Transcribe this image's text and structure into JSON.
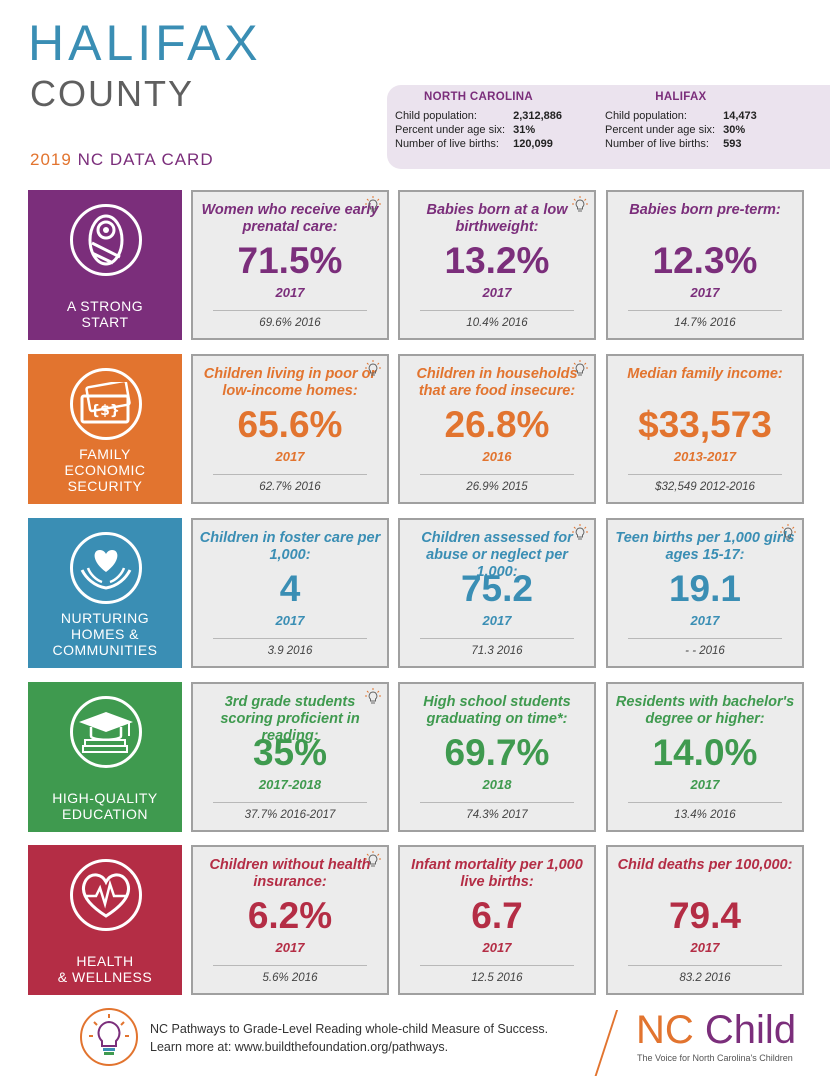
{
  "header": {
    "title_line1": "HALIFAX",
    "title_line2": "COUNTY",
    "year": "2019",
    "card_label": "NC DATA CARD"
  },
  "stats": {
    "nc": {
      "heading": "NORTH CAROLINA",
      "rows": [
        {
          "label": "Child population:",
          "value": "2,312,886"
        },
        {
          "label": "Percent under age six:",
          "value": "31%"
        },
        {
          "label": "Number of live births:",
          "value": "120,099"
        }
      ]
    },
    "halifax": {
      "heading": "HALIFAX",
      "rows": [
        {
          "label": "Child population:",
          "value": "14,473"
        },
        {
          "label": "Percent under age six:",
          "value": "30%"
        },
        {
          "label": "Number of live births:",
          "value": "593"
        }
      ]
    }
  },
  "colors": {
    "start": "#7b2e7b",
    "economic": "#e2742f",
    "nurturing": "#3a8eb4",
    "education": "#3f9a4f",
    "health": "#b42d45"
  },
  "sections": [
    {
      "label_lines": [
        "A STRONG",
        "START"
      ],
      "icon": "swaddled-baby-icon",
      "cards": [
        {
          "question": "Women who receive early prenatal care:",
          "value": "71.5%",
          "year": "2017",
          "previous": "69.6%  2016",
          "bulb": true
        },
        {
          "question": "Babies born at a low birthweight:",
          "value": "13.2%",
          "year": "2017",
          "previous": "10.4%  2016",
          "bulb": true
        },
        {
          "question": "Babies born pre-term:",
          "value": "12.3%",
          "year": "2017",
          "previous": "14.7%  2016",
          "bulb": false
        }
      ]
    },
    {
      "label_lines": [
        "FAMILY",
        "ECONOMIC",
        "SECURITY"
      ],
      "icon": "money-bills-icon",
      "cards": [
        {
          "question": "Children living in poor or low-income homes:",
          "value": "65.6%",
          "year": "2017",
          "previous": "62.7%  2016",
          "bulb": true
        },
        {
          "question": "Children in households that are food insecure:",
          "value": "26.8%",
          "year": "2016",
          "previous": "26.9%  2015",
          "bulb": true
        },
        {
          "question": "Median family income:",
          "value": "$33,573",
          "year": "2013-2017",
          "previous": "$32,549  2012-2016",
          "bulb": false
        }
      ]
    },
    {
      "label_lines": [
        "NURTURING",
        "HOMES &",
        "COMMUNITIES"
      ],
      "icon": "heart-in-hands-icon",
      "cards": [
        {
          "question": "Children in foster care per 1,000:",
          "value": "4",
          "year": "2017",
          "previous": "3.9  2016",
          "bulb": false
        },
        {
          "question": "Children assessed for abuse or neglect per 1,000:",
          "value": "75.2",
          "year": "2017",
          "previous": "71.3  2016",
          "bulb": true
        },
        {
          "question": "Teen births per 1,000 girls ages 15-17:",
          "value": "19.1",
          "year": "2017",
          "previous": "- -  2016",
          "bulb": true
        }
      ]
    },
    {
      "label_lines": [
        "HIGH-QUALITY",
        "EDUCATION"
      ],
      "icon": "graduation-cap-icon",
      "cards": [
        {
          "question": "3rd grade students scoring proficient in reading:",
          "value": "35%",
          "year": "2017-2018",
          "previous": "37.7%  2016-2017",
          "bulb": true
        },
        {
          "question": "High school students graduating on time*:",
          "value": "69.7%",
          "year": "2018",
          "previous": "74.3%  2017",
          "bulb": false
        },
        {
          "question": "Residents with bachelor's degree or higher:",
          "value": "14.0%",
          "year": "2017",
          "previous": "13.4%  2016",
          "bulb": false
        }
      ]
    },
    {
      "label_lines": [
        "HEALTH",
        "& WELLNESS"
      ],
      "icon": "heartbeat-icon",
      "cards": [
        {
          "question": "Children without health insurance:",
          "value": "6.2%",
          "year": "2017",
          "previous": "5.6%  2016",
          "bulb": true
        },
        {
          "question": "Infant mortality per 1,000 live births:",
          "value": "6.7",
          "year": "2017",
          "previous": "12.5  2016",
          "bulb": false
        },
        {
          "question": "Child deaths per 100,000:",
          "value": "79.4",
          "year": "2017",
          "previous": "83.2  2016",
          "bulb": false
        }
      ]
    }
  ],
  "footer": {
    "line1": "NC Pathways to Grade-Level Reading whole-child Measure of Success.",
    "line2": "Learn more at: www.buildthefoundation.org/pathways.",
    "logo_nc": "NC",
    "logo_child": "Child",
    "tagline": "The Voice for North Carolina's Children",
    "bulb_icon": "lightbulb-icon"
  }
}
